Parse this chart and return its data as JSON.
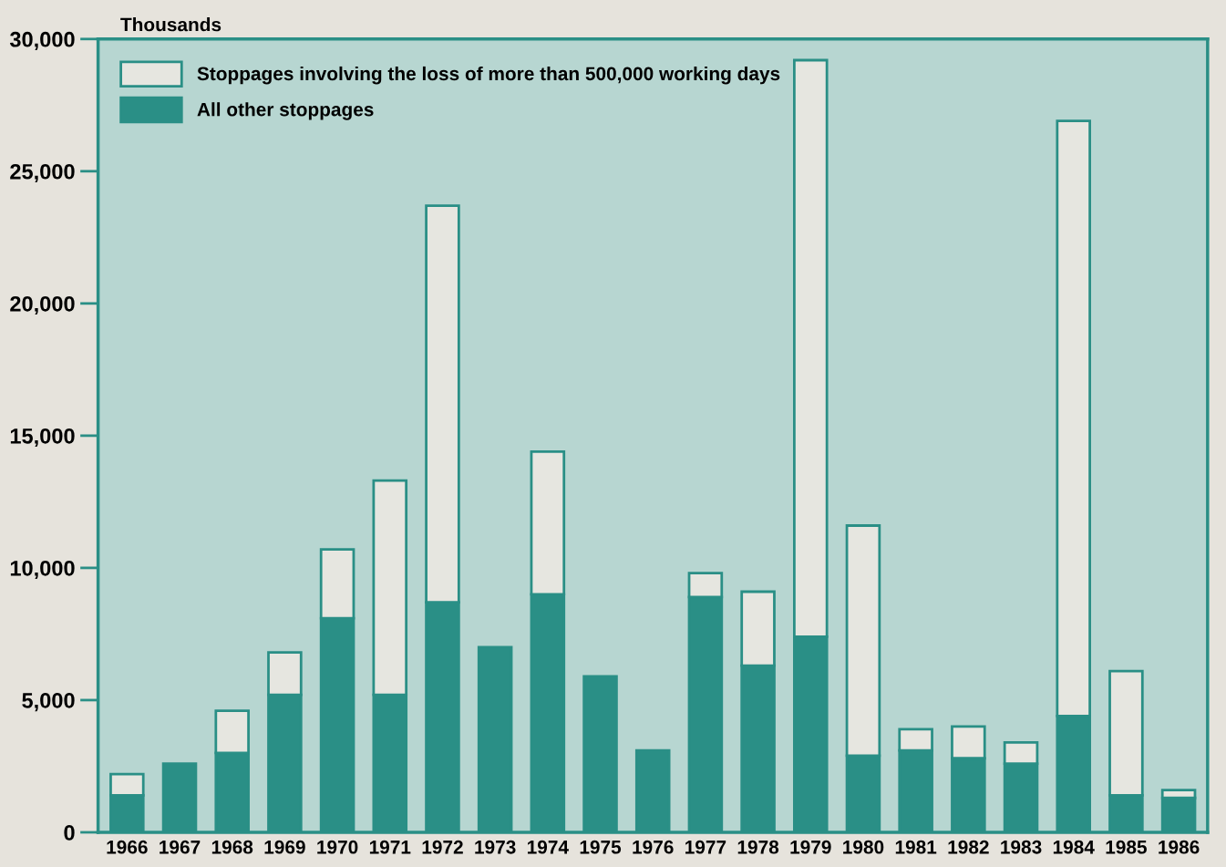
{
  "chart_data": {
    "type": "bar",
    "stacked": true,
    "ylabel": "Thousands",
    "categories": [
      "1966",
      "1967",
      "1968",
      "1969",
      "1970",
      "1971",
      "1972",
      "1973",
      "1974",
      "1975",
      "1976",
      "1977",
      "1978",
      "1979",
      "1980",
      "1981",
      "1982",
      "1983",
      "1984",
      "1985",
      "1986"
    ],
    "series": [
      {
        "name": "All other stoppages",
        "color": "#2a8f86",
        "values": [
          1400,
          2600,
          3000,
          5200,
          8100,
          5200,
          8700,
          7000,
          9000,
          5900,
          3100,
          8900,
          6300,
          7400,
          2900,
          3100,
          2800,
          2600,
          4400,
          1400,
          1300
        ]
      },
      {
        "name": "Stoppages involving the loss of more than 500,000 working days",
        "color": "#e6e6e0",
        "values": [
          800,
          null,
          1600,
          1600,
          2600,
          8100,
          15000,
          null,
          5400,
          null,
          null,
          900,
          2800,
          21800,
          8700,
          800,
          1200,
          800,
          22500,
          4700,
          300
        ]
      }
    ],
    "ylim": [
      0,
      30000
    ],
    "yticks": [
      0,
      {
        "value": 5000,
        "label": "5,000"
      },
      {
        "value": 10000,
        "label": "10,000"
      },
      {
        "value": 15000,
        "label": "15,000"
      },
      {
        "value": 20000,
        "label": "20,000"
      },
      {
        "value": 25000,
        "label": "25,000"
      },
      {
        "value": 30000,
        "label": "30,000"
      }
    ],
    "legend": "top left",
    "grid": false
  }
}
